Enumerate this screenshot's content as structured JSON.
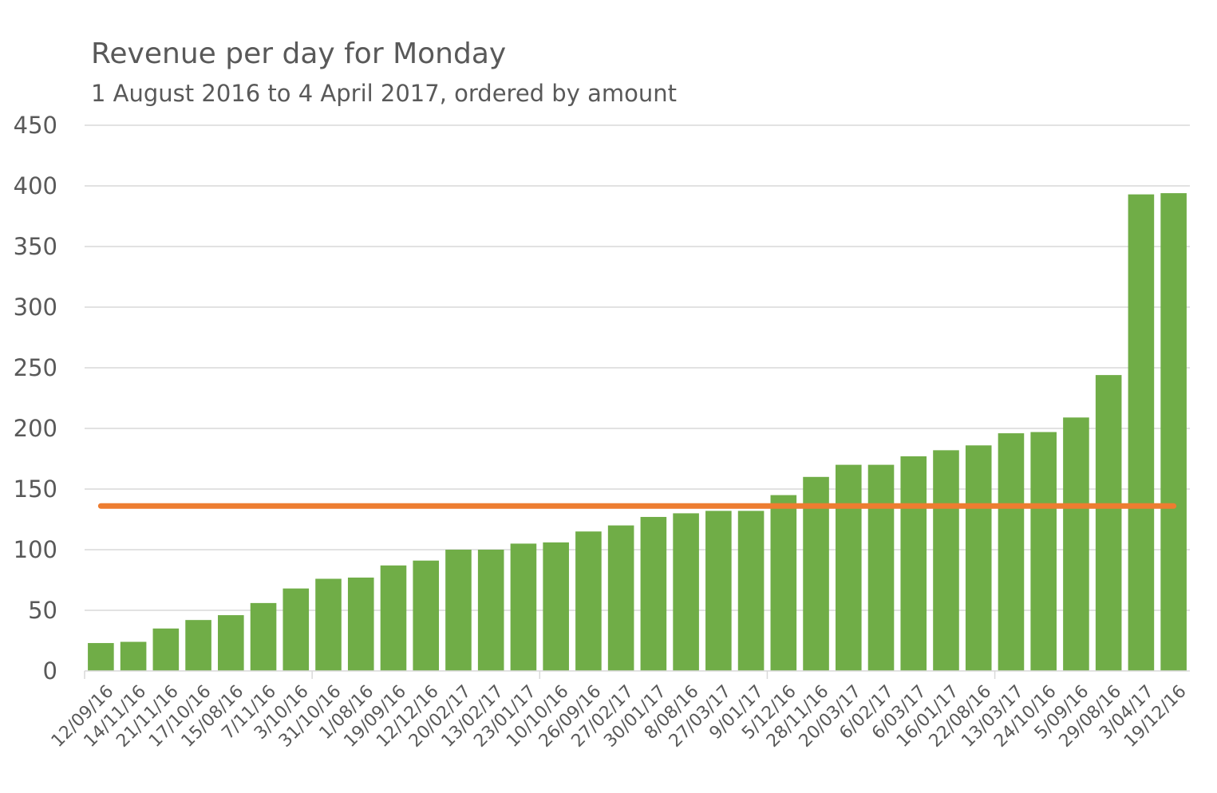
{
  "chart_data": {
    "type": "bar",
    "title": "Revenue per day for Monday",
    "subtitle": "1 August 2016 to 4 April 2017, ordered by amount",
    "xlabel": "",
    "ylabel": "",
    "ylim": [
      0,
      450
    ],
    "yticks": [
      "0",
      "50",
      "100",
      "150",
      "200",
      "250",
      "300",
      "350",
      "400",
      "450"
    ],
    "grid": true,
    "legend": "none",
    "categories": [
      "12/09/16",
      "14/11/16",
      "21/11/16",
      "17/10/16",
      "15/08/16",
      "7/11/16",
      "3/10/16",
      "31/10/16",
      "1/08/16",
      "19/09/16",
      "12/12/16",
      "20/02/17",
      "13/02/17",
      "23/01/17",
      "10/10/16",
      "26/09/16",
      "27/02/17",
      "30/01/17",
      "8/08/16",
      "27/03/17",
      "9/01/17",
      "5/12/16",
      "28/11/16",
      "20/03/17",
      "6/02/17",
      "6/03/17",
      "16/01/17",
      "22/08/16",
      "13/03/17",
      "24/10/16",
      "5/09/16",
      "29/08/16",
      "3/04/17",
      "19/12/16"
    ],
    "series": [
      {
        "type": "bar",
        "color": "#70ad47",
        "values": [
          23,
          24,
          35,
          42,
          46,
          56,
          68,
          76,
          77,
          87,
          91,
          100,
          100,
          105,
          106,
          115,
          120,
          127,
          130,
          132,
          132,
          145,
          160,
          170,
          170,
          177,
          182,
          186,
          196,
          197,
          209,
          244,
          393,
          394
        ]
      },
      {
        "type": "line",
        "color": "#ed7d31",
        "value": 136
      }
    ]
  }
}
